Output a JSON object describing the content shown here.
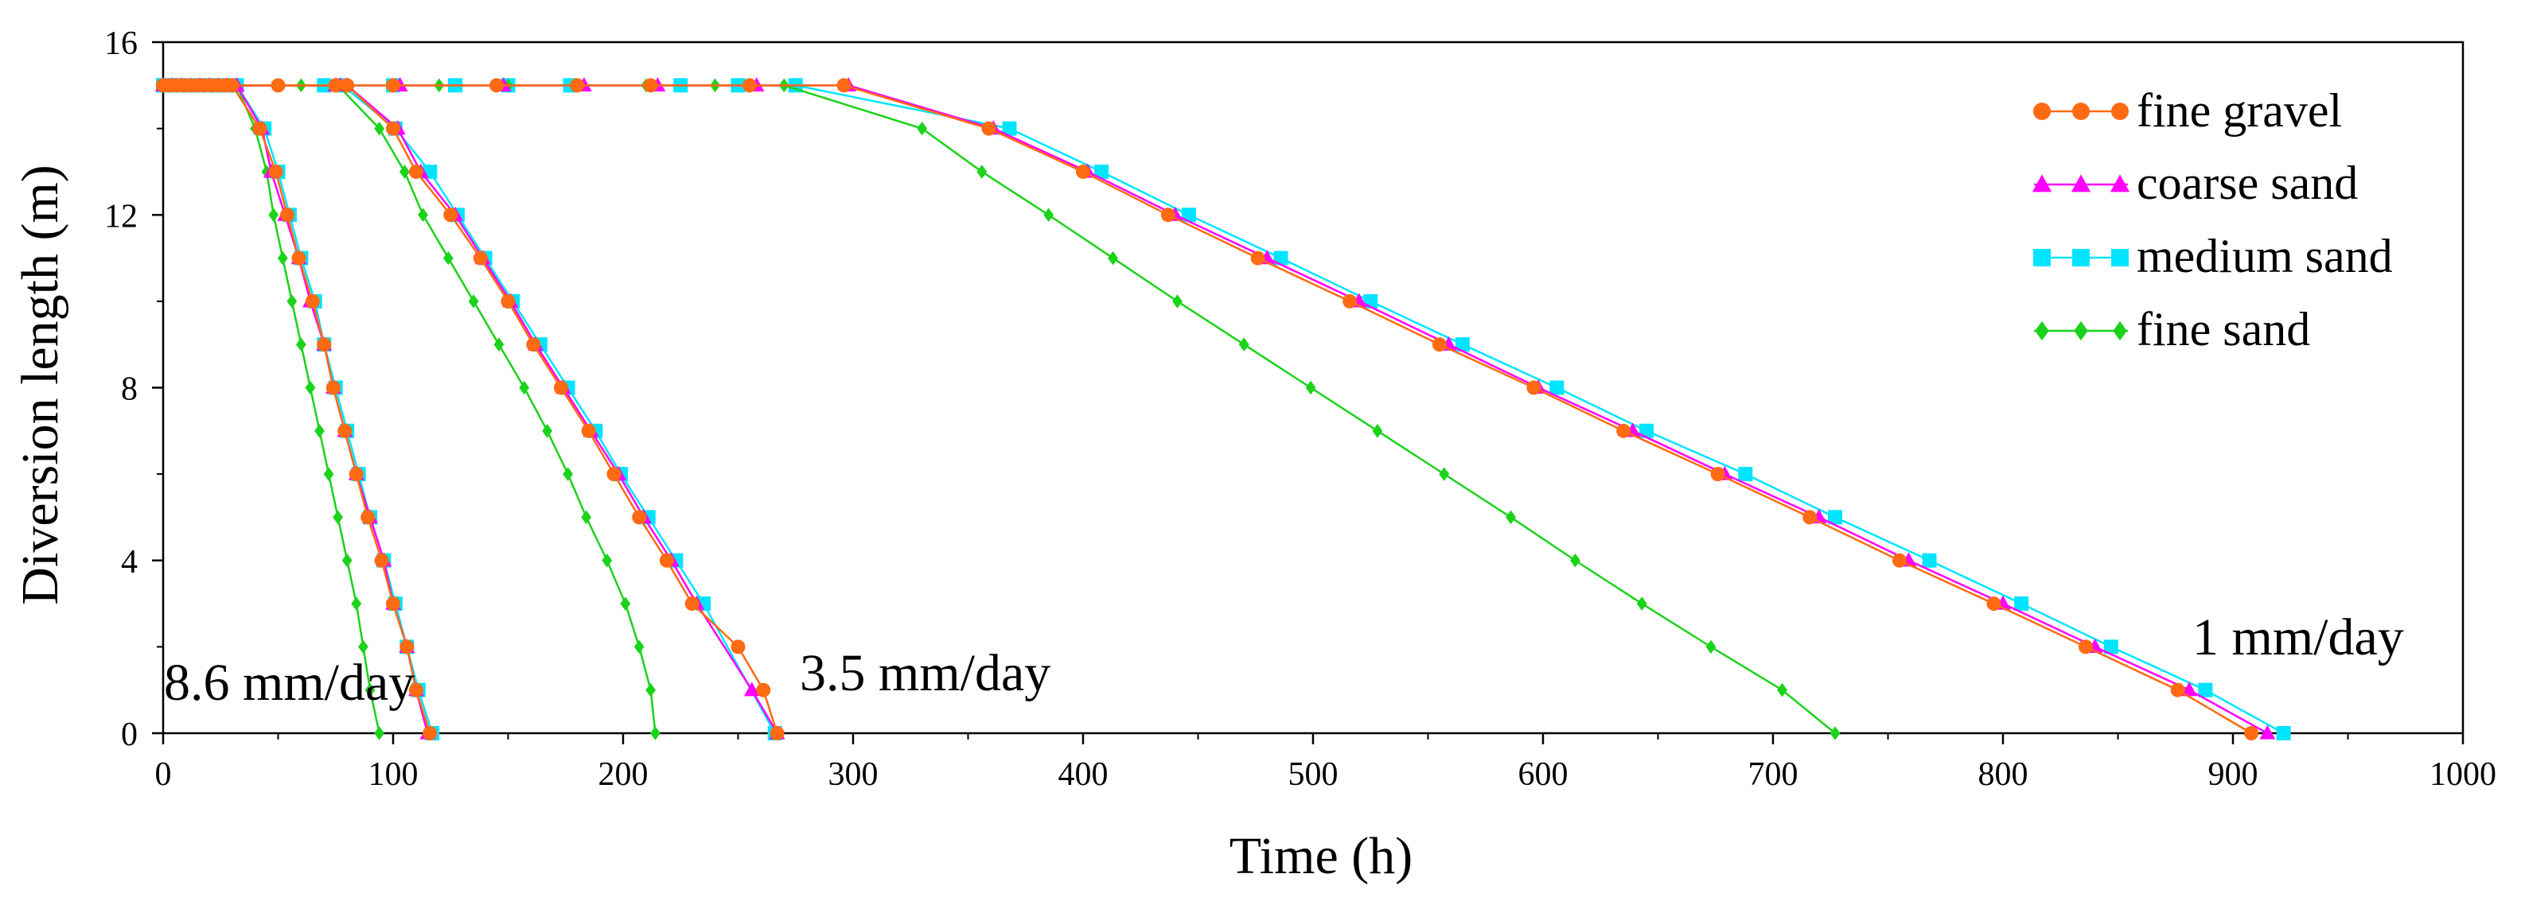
{
  "chart_data": {
    "type": "line",
    "title": "",
    "xlabel": "Time (h)",
    "ylabel": "Diversion length (m)",
    "xlim": [
      0,
      1000
    ],
    "ylim": [
      0,
      16
    ],
    "xticks": [
      0,
      100,
      200,
      300,
      400,
      500,
      600,
      700,
      800,
      900,
      1000
    ],
    "yticks": [
      0,
      4,
      8,
      12,
      16
    ],
    "xtick_labels": [
      "0",
      "100",
      "200",
      "300",
      "400",
      "500",
      "600",
      "700",
      "800",
      "900",
      "1000"
    ],
    "ytick_labels": [
      "0",
      "4",
      "8",
      "12",
      "16"
    ],
    "grid": false,
    "legend_position": "top-right",
    "legend": [
      "fine gravel",
      "coarse sand",
      "medium sand",
      "fine sand"
    ],
    "annotations": [
      "8.6 mm/day",
      "3.5 mm/day",
      "1 mm/day"
    ],
    "series": [
      {
        "name": "fine gravel",
        "rate": "8.6 mm/day",
        "color": "#ff6a13",
        "marker": "circle",
        "points": [
          [
            0,
            15
          ],
          [
            3,
            15
          ],
          [
            6,
            15
          ],
          [
            9,
            15
          ],
          [
            12,
            15
          ],
          [
            15,
            15
          ],
          [
            18,
            15
          ],
          [
            21,
            15
          ],
          [
            24,
            15
          ],
          [
            27,
            15
          ],
          [
            30,
            15
          ],
          [
            42,
            14
          ],
          [
            49,
            13
          ],
          [
            54,
            12
          ],
          [
            59,
            11
          ],
          [
            65,
            10
          ],
          [
            70,
            9
          ],
          [
            74,
            8
          ],
          [
            79,
            7
          ],
          [
            84,
            6
          ],
          [
            89,
            5
          ],
          [
            95,
            4
          ],
          [
            100,
            3
          ],
          [
            106,
            2
          ],
          [
            110,
            1
          ],
          [
            116,
            0
          ]
        ]
      },
      {
        "name": "coarse sand",
        "rate": "8.6 mm/day",
        "color": "#ff00ff",
        "marker": "triangle",
        "points": [
          [
            0,
            15
          ],
          [
            4,
            15
          ],
          [
            8,
            15
          ],
          [
            12,
            15
          ],
          [
            16,
            15
          ],
          [
            20,
            15
          ],
          [
            24,
            15
          ],
          [
            28,
            15
          ],
          [
            32,
            15
          ],
          [
            43,
            14
          ],
          [
            47,
            13
          ],
          [
            53,
            12
          ],
          [
            59,
            11
          ],
          [
            64,
            10
          ],
          [
            70,
            9
          ],
          [
            74,
            8
          ],
          [
            79,
            7
          ],
          [
            84,
            6
          ],
          [
            90,
            5
          ],
          [
            96,
            4
          ],
          [
            100,
            3
          ],
          [
            106,
            2
          ],
          [
            110,
            1
          ],
          [
            115,
            0
          ]
        ]
      },
      {
        "name": "medium sand",
        "rate": "8.6 mm/day",
        "color": "#00e5ff",
        "marker": "square",
        "points": [
          [
            0,
            15
          ],
          [
            4,
            15
          ],
          [
            8,
            15
          ],
          [
            12,
            15
          ],
          [
            16,
            15
          ],
          [
            20,
            15
          ],
          [
            24,
            15
          ],
          [
            28,
            15
          ],
          [
            32,
            15
          ],
          [
            44,
            14
          ],
          [
            50,
            13
          ],
          [
            55,
            12
          ],
          [
            60,
            11
          ],
          [
            66,
            10
          ],
          [
            70,
            9
          ],
          [
            75,
            8
          ],
          [
            80,
            7
          ],
          [
            85,
            6
          ],
          [
            90,
            5
          ],
          [
            96,
            4
          ],
          [
            101,
            3
          ],
          [
            106,
            2
          ],
          [
            111,
            1
          ],
          [
            117,
            0
          ]
        ]
      },
      {
        "name": "fine sand",
        "rate": "8.6 mm/day",
        "color": "#1ad31a",
        "marker": "diamond",
        "points": [
          [
            0,
            15
          ],
          [
            4,
            15
          ],
          [
            8,
            15
          ],
          [
            12,
            15
          ],
          [
            16,
            15
          ],
          [
            20,
            15
          ],
          [
            24,
            15
          ],
          [
            28,
            15
          ],
          [
            32,
            15
          ],
          [
            40,
            14
          ],
          [
            45,
            13
          ],
          [
            48,
            12
          ],
          [
            52,
            11
          ],
          [
            56,
            10
          ],
          [
            60,
            9
          ],
          [
            64,
            8
          ],
          [
            68,
            7
          ],
          [
            72,
            6
          ],
          [
            76,
            5
          ],
          [
            80,
            4
          ],
          [
            84,
            3
          ],
          [
            87,
            2
          ],
          [
            90,
            1
          ],
          [
            94,
            0
          ]
        ]
      },
      {
        "name": "fine gravel",
        "rate": "3.5 mm/day",
        "color": "#ff6a13",
        "marker": "circle",
        "points": [
          [
            0,
            15
          ],
          [
            50,
            15
          ],
          [
            75,
            15
          ],
          [
            80,
            15
          ],
          [
            100,
            14
          ],
          [
            110,
            13
          ],
          [
            125,
            12
          ],
          [
            138,
            11
          ],
          [
            150,
            10
          ],
          [
            161,
            9
          ],
          [
            173,
            8
          ],
          [
            185,
            7
          ],
          [
            196,
            6
          ],
          [
            207,
            5
          ],
          [
            219,
            4
          ],
          [
            230,
            3
          ],
          [
            250,
            2
          ],
          [
            261,
            1
          ],
          [
            267,
            0
          ]
        ]
      },
      {
        "name": "coarse sand",
        "rate": "3.5 mm/day",
        "color": "#ff00ff",
        "marker": "triangle",
        "points": [
          [
            0,
            15
          ],
          [
            75,
            15
          ],
          [
            80,
            15
          ],
          [
            102,
            14
          ],
          [
            112,
            13
          ],
          [
            127,
            12
          ],
          [
            139,
            11
          ],
          [
            151,
            10
          ],
          [
            162,
            9
          ],
          [
            174,
            8
          ],
          [
            186,
            7
          ],
          [
            198,
            6
          ],
          [
            209,
            5
          ],
          [
            221,
            4
          ],
          [
            232,
            3
          ],
          [
            256,
            1
          ],
          [
            267,
            0
          ]
        ]
      },
      {
        "name": "medium sand",
        "rate": "3.5 mm/day",
        "color": "#00e5ff",
        "marker": "square",
        "points": [
          [
            0,
            15
          ],
          [
            70,
            15
          ],
          [
            78,
            15
          ],
          [
            101,
            14
          ],
          [
            116,
            13
          ],
          [
            128,
            12
          ],
          [
            140,
            11
          ],
          [
            152,
            10
          ],
          [
            164,
            9
          ],
          [
            176,
            8
          ],
          [
            188,
            7
          ],
          [
            199,
            6
          ],
          [
            211,
            5
          ],
          [
            223,
            4
          ],
          [
            235,
            3
          ],
          [
            266,
            0
          ]
        ]
      },
      {
        "name": "fine sand",
        "rate": "3.5 mm/day",
        "color": "#1ad31a",
        "marker": "diamond",
        "points": [
          [
            0,
            15
          ],
          [
            60,
            15
          ],
          [
            76,
            15
          ],
          [
            94,
            14
          ],
          [
            105,
            13
          ],
          [
            113,
            12
          ],
          [
            124,
            11
          ],
          [
            135,
            10
          ],
          [
            146,
            9
          ],
          [
            157,
            8
          ],
          [
            167,
            7
          ],
          [
            176,
            6
          ],
          [
            184,
            5
          ],
          [
            193,
            4
          ],
          [
            201,
            3
          ],
          [
            207,
            2
          ],
          [
            212,
            1
          ],
          [
            214,
            0
          ]
        ]
      },
      {
        "name": "fine gravel",
        "rate": "1 mm/day",
        "color": "#ff6a13",
        "marker": "circle",
        "points": [
          [
            0,
            15
          ],
          [
            75,
            15
          ],
          [
            100,
            15
          ],
          [
            145,
            15
          ],
          [
            180,
            15
          ],
          [
            212,
            15
          ],
          [
            255,
            15
          ],
          [
            296,
            15
          ],
          [
            359,
            14
          ],
          [
            400,
            13
          ],
          [
            437,
            12
          ],
          [
            476,
            11
          ],
          [
            516,
            10
          ],
          [
            555,
            9
          ],
          [
            596,
            8
          ],
          [
            635,
            7
          ],
          [
            676,
            6
          ],
          [
            716,
            5
          ],
          [
            755,
            4
          ],
          [
            796,
            3
          ],
          [
            836,
            2
          ],
          [
            876,
            1
          ],
          [
            908,
            0
          ]
        ]
      },
      {
        "name": "coarse sand",
        "rate": "1 mm/day",
        "color": "#ff00ff",
        "marker": "triangle",
        "points": [
          [
            0,
            15
          ],
          [
            77,
            15
          ],
          [
            103,
            15
          ],
          [
            148,
            15
          ],
          [
            183,
            15
          ],
          [
            215,
            15
          ],
          [
            258,
            15
          ],
          [
            298,
            15
          ],
          [
            361,
            14
          ],
          [
            402,
            13
          ],
          [
            440,
            12
          ],
          [
            480,
            11
          ],
          [
            520,
            10
          ],
          [
            559,
            9
          ],
          [
            598,
            8
          ],
          [
            639,
            7
          ],
          [
            679,
            6
          ],
          [
            720,
            5
          ],
          [
            759,
            4
          ],
          [
            800,
            3
          ],
          [
            840,
            2
          ],
          [
            881,
            1
          ],
          [
            915,
            0
          ]
        ]
      },
      {
        "name": "medium sand",
        "rate": "1 mm/day",
        "color": "#00e5ff",
        "marker": "square",
        "points": [
          [
            0,
            15
          ],
          [
            100,
            15
          ],
          [
            127,
            15
          ],
          [
            150,
            15
          ],
          [
            177,
            15
          ],
          [
            225,
            15
          ],
          [
            250,
            15
          ],
          [
            275,
            15
          ],
          [
            368,
            14
          ],
          [
            408,
            13
          ],
          [
            446,
            12
          ],
          [
            486,
            11
          ],
          [
            525,
            10
          ],
          [
            565,
            9
          ],
          [
            606,
            8
          ],
          [
            645,
            7
          ],
          [
            688,
            6
          ],
          [
            727,
            5
          ],
          [
            768,
            4
          ],
          [
            808,
            3
          ],
          [
            847,
            2
          ],
          [
            888,
            1
          ],
          [
            922,
            0
          ]
        ]
      },
      {
        "name": "fine sand",
        "rate": "1 mm/day",
        "color": "#1ad31a",
        "marker": "diamond",
        "points": [
          [
            0,
            15
          ],
          [
            120,
            15
          ],
          [
            150,
            15
          ],
          [
            180,
            15
          ],
          [
            210,
            15
          ],
          [
            240,
            15
          ],
          [
            270,
            15
          ],
          [
            330,
            14
          ],
          [
            356,
            13
          ],
          [
            385,
            12
          ],
          [
            413,
            11
          ],
          [
            441,
            10
          ],
          [
            470,
            9
          ],
          [
            499,
            8
          ],
          [
            528,
            7
          ],
          [
            557,
            6
          ],
          [
            586,
            5
          ],
          [
            614,
            4
          ],
          [
            643,
            3
          ],
          [
            673,
            2
          ],
          [
            704,
            1
          ],
          [
            727,
            0
          ]
        ]
      }
    ]
  }
}
